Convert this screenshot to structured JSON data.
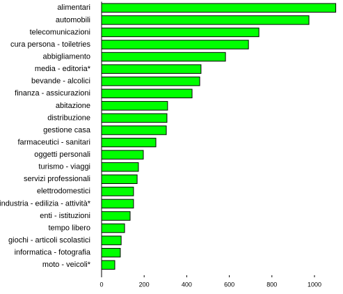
{
  "chart_data": {
    "type": "hbar",
    "categories": [
      "alimentari",
      "automobili",
      "telecomunicazioni",
      "cura persona - toiletries",
      "abbigliamento",
      "media - editoria*",
      "bevande - alcolici",
      "finanza - assicurazioni",
      "abitazione",
      "distribuzione",
      "gestione casa",
      "farmaceutici - sanitari",
      "oggetti personali",
      "turismo - viaggi",
      "servizi professionali",
      "elettrodomestici",
      "industria - edilizia - attività*",
      "enti - istituzioni",
      "tempo libero",
      "giochi - articoli scolastici",
      "informatica - fotografia",
      "moto - veicoli*"
    ],
    "values": [
      1100,
      974,
      739,
      690,
      582,
      467,
      461,
      425,
      310,
      307,
      304,
      255,
      196,
      173,
      167,
      150,
      150,
      134,
      108,
      92,
      88,
      62
    ],
    "color": "#00ff00",
    "xlim": [
      0,
      1100
    ],
    "xticks": [
      0,
      200,
      400,
      600,
      800,
      1000
    ]
  }
}
